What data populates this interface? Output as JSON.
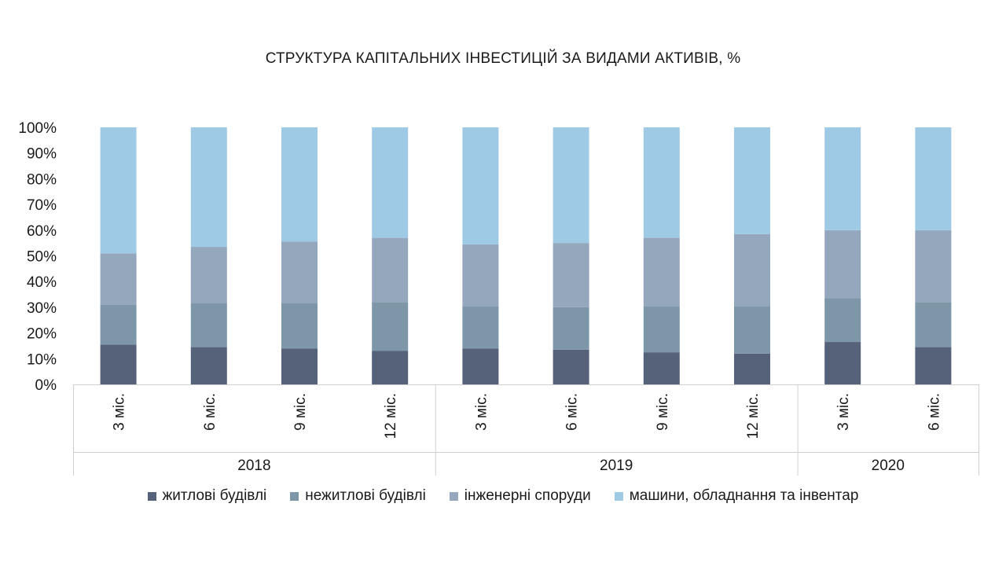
{
  "chart_data": {
    "type": "bar",
    "stacked": true,
    "title": "СТРУКТУРА КАПІТАЛЬНИХ ІНВЕСТИЦІЙ ЗА ВИДАМИ АКТИВІВ, %",
    "ylim": [
      0,
      100
    ],
    "y_ticks": [
      "0%",
      "10%",
      "20%",
      "30%",
      "40%",
      "50%",
      "60%",
      "70%",
      "80%",
      "90%",
      "100%"
    ],
    "grid": false,
    "legend_position": "bottom",
    "categories": [
      "3 міс.",
      "6 міс.",
      "9 міс.",
      "12 міс.",
      "3 міс.",
      "6 міс.",
      "9 міс.",
      "12 міс.",
      "3 міс.",
      "6 міс."
    ],
    "groups": [
      {
        "label": "2018",
        "count": 4
      },
      {
        "label": "2019",
        "count": 4
      },
      {
        "label": "2020",
        "count": 2
      }
    ],
    "series": [
      {
        "name": "житлові будівлі",
        "color": "#56627a",
        "values": [
          15.5,
          14.5,
          14,
          13,
          14,
          13.5,
          12.5,
          12,
          16.5,
          14.5
        ]
      },
      {
        "name": "нежитлові будівлі",
        "color": "#7d96a8",
        "values": [
          15.5,
          17,
          17.5,
          19,
          16.5,
          16.5,
          18,
          18.5,
          17,
          17.5
        ]
      },
      {
        "name": "інженерні споруди",
        "color": "#95a7bc",
        "values": [
          20,
          22,
          24,
          25,
          24,
          25,
          26.5,
          28,
          26.5,
          28
        ]
      },
      {
        "name": "машини, обладнання та інвентар",
        "color": "#9ecae6",
        "values": [
          49,
          46.5,
          44.5,
          43,
          45.5,
          45,
          43,
          41.5,
          40,
          40
        ]
      }
    ]
  }
}
